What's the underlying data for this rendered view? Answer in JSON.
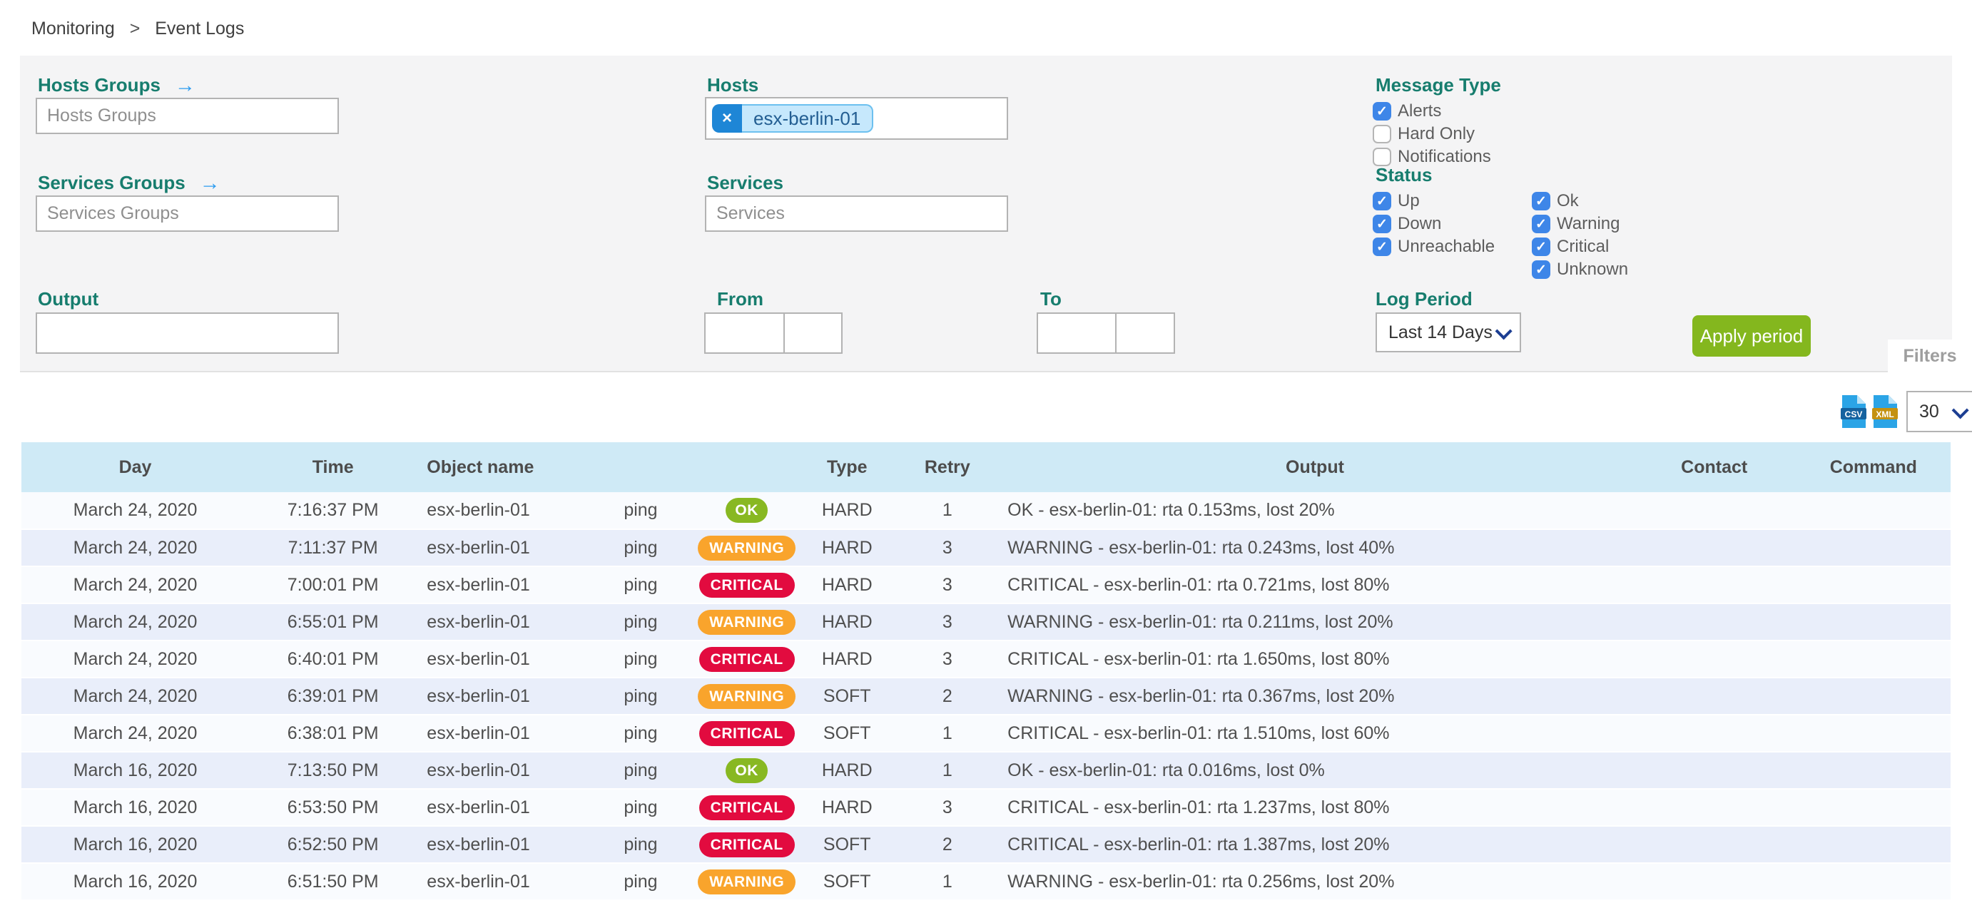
{
  "breadcrumb": {
    "items": [
      "Monitoring",
      "Event Logs"
    ],
    "separator": ">"
  },
  "filters": {
    "hosts_groups": {
      "label": "Hosts Groups",
      "arrow": "→",
      "placeholder": "Hosts Groups"
    },
    "services_groups": {
      "label": "Services Groups",
      "arrow": "→",
      "placeholder": "Services Groups"
    },
    "hosts": {
      "label": "Hosts",
      "chip": {
        "text": "esx-berlin-01",
        "remove": "×"
      }
    },
    "services": {
      "label": "Services",
      "placeholder": "Services"
    },
    "output": {
      "label": "Output",
      "value": ""
    },
    "from": {
      "label": "From",
      "date": "",
      "time": ""
    },
    "to": {
      "label": "To",
      "date": "",
      "time": ""
    },
    "message_type": {
      "label": "Message Type",
      "options": [
        {
          "label": "Alerts",
          "checked": true
        },
        {
          "label": "Hard Only",
          "checked": false
        },
        {
          "label": "Notifications",
          "checked": false
        }
      ]
    },
    "status": {
      "label": "Status",
      "columns": [
        [
          {
            "label": "Up",
            "checked": true
          },
          {
            "label": "Down",
            "checked": true
          },
          {
            "label": "Unreachable",
            "checked": true
          }
        ],
        [
          {
            "label": "Ok",
            "checked": true
          },
          {
            "label": "Warning",
            "checked": true
          },
          {
            "label": "Critical",
            "checked": true
          },
          {
            "label": "Unknown",
            "checked": true
          }
        ]
      ]
    },
    "log_period": {
      "label": "Log Period",
      "value": "Last 14 Days"
    },
    "apply_button_label": "Apply period",
    "tab_label": "Filters"
  },
  "toolbar": {
    "export_csv": "CSV",
    "export_xml": "XML",
    "page_size": "30"
  },
  "table": {
    "headers": [
      "Day",
      "Time",
      "Object name",
      "",
      "",
      "Type",
      "Retry",
      "Output",
      "Contact",
      "Command"
    ],
    "rows": [
      {
        "day": "March 24, 2020",
        "time": "7:16:37 PM",
        "object": "esx-berlin-01",
        "service": "ping",
        "status": "OK",
        "type": "HARD",
        "retry": "1",
        "output": "OK - esx-berlin-01: rta 0.153ms, lost 20%",
        "contact": "",
        "command": ""
      },
      {
        "day": "March 24, 2020",
        "time": "7:11:37 PM",
        "object": "esx-berlin-01",
        "service": "ping",
        "status": "WARNING",
        "type": "HARD",
        "retry": "3",
        "output": "WARNING - esx-berlin-01: rta 0.243ms, lost 40%",
        "contact": "",
        "command": ""
      },
      {
        "day": "March 24, 2020",
        "time": "7:00:01 PM",
        "object": "esx-berlin-01",
        "service": "ping",
        "status": "CRITICAL",
        "type": "HARD",
        "retry": "3",
        "output": "CRITICAL - esx-berlin-01: rta 0.721ms, lost 80%",
        "contact": "",
        "command": ""
      },
      {
        "day": "March 24, 2020",
        "time": "6:55:01 PM",
        "object": "esx-berlin-01",
        "service": "ping",
        "status": "WARNING",
        "type": "HARD",
        "retry": "3",
        "output": "WARNING - esx-berlin-01: rta 0.211ms, lost 20%",
        "contact": "",
        "command": ""
      },
      {
        "day": "March 24, 2020",
        "time": "6:40:01 PM",
        "object": "esx-berlin-01",
        "service": "ping",
        "status": "CRITICAL",
        "type": "HARD",
        "retry": "3",
        "output": "CRITICAL - esx-berlin-01: rta 1.650ms, lost 80%",
        "contact": "",
        "command": ""
      },
      {
        "day": "March 24, 2020",
        "time": "6:39:01 PM",
        "object": "esx-berlin-01",
        "service": "ping",
        "status": "WARNING",
        "type": "SOFT",
        "retry": "2",
        "output": "WARNING - esx-berlin-01: rta 0.367ms, lost 20%",
        "contact": "",
        "command": ""
      },
      {
        "day": "March 24, 2020",
        "time": "6:38:01 PM",
        "object": "esx-berlin-01",
        "service": "ping",
        "status": "CRITICAL",
        "type": "SOFT",
        "retry": "1",
        "output": "CRITICAL - esx-berlin-01: rta 1.510ms, lost 60%",
        "contact": "",
        "command": ""
      },
      {
        "day": "March 16, 2020",
        "time": "7:13:50 PM",
        "object": "esx-berlin-01",
        "service": "ping",
        "status": "OK",
        "type": "HARD",
        "retry": "1",
        "output": "OK - esx-berlin-01: rta 0.016ms, lost 0%",
        "contact": "",
        "command": ""
      },
      {
        "day": "March 16, 2020",
        "time": "6:53:50 PM",
        "object": "esx-berlin-01",
        "service": "ping",
        "status": "CRITICAL",
        "type": "HARD",
        "retry": "3",
        "output": "CRITICAL - esx-berlin-01: rta 1.237ms, lost 80%",
        "contact": "",
        "command": ""
      },
      {
        "day": "March 16, 2020",
        "time": "6:52:50 PM",
        "object": "esx-berlin-01",
        "service": "ping",
        "status": "CRITICAL",
        "type": "SOFT",
        "retry": "2",
        "output": "CRITICAL - esx-berlin-01: rta 1.387ms, lost 20%",
        "contact": "",
        "command": ""
      },
      {
        "day": "March 16, 2020",
        "time": "6:51:50 PM",
        "object": "esx-berlin-01",
        "service": "ping",
        "status": "WARNING",
        "type": "SOFT",
        "retry": "1",
        "output": "WARNING - esx-berlin-01: rta 0.256ms, lost 20%",
        "contact": "",
        "command": ""
      }
    ]
  },
  "colors": {
    "accent_teal": "#177d6e",
    "link_blue": "#2d9cf0",
    "checkbox_blue": "#3e86e8",
    "ok_green": "#88b822",
    "warning_orange": "#f9a42c",
    "critical_red": "#e20b3f",
    "apply_green": "#84b71e",
    "table_header_bg": "#cfeaf6",
    "row_alt_bg": "#e9eefa",
    "chip_bg": "#c6e8fc",
    "chip_btn": "#1e86d6"
  }
}
